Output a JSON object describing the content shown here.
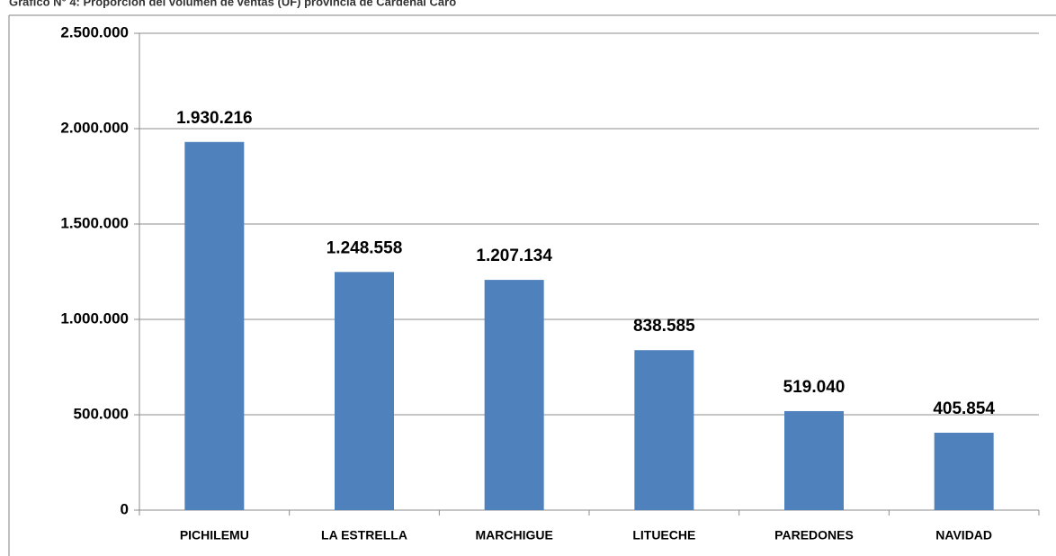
{
  "chart_data": {
    "type": "bar",
    "title": "Gráfico N° 4: Proporción del volumen de ventas (UF) provincia de Cardenal Caro",
    "categories": [
      "PICHILEMU",
      "LA ESTRELLA",
      "MARCHIGUE",
      "LITUECHE",
      "PAREDONES",
      "NAVIDAD"
    ],
    "values": [
      1930216,
      1248558,
      1207134,
      838585,
      519040,
      405854
    ],
    "value_labels": [
      "1.930.216",
      "1.248.558",
      "1.207.134",
      "838.585",
      "519.040",
      "405.854"
    ],
    "color": "#4f81bd",
    "ylim": [
      0,
      2500000
    ],
    "yticks": [
      0,
      {
        "value": 500000,
        "label": "500.000"
      },
      {
        "value": 1000000,
        "label": "1.000.000"
      },
      {
        "value": 1500000,
        "label": "1.500.000"
      },
      {
        "value": 2000000,
        "label": "2.000.000"
      },
      {
        "value": 2500000,
        "label": "2.500.000"
      }
    ],
    "grid": true
  }
}
